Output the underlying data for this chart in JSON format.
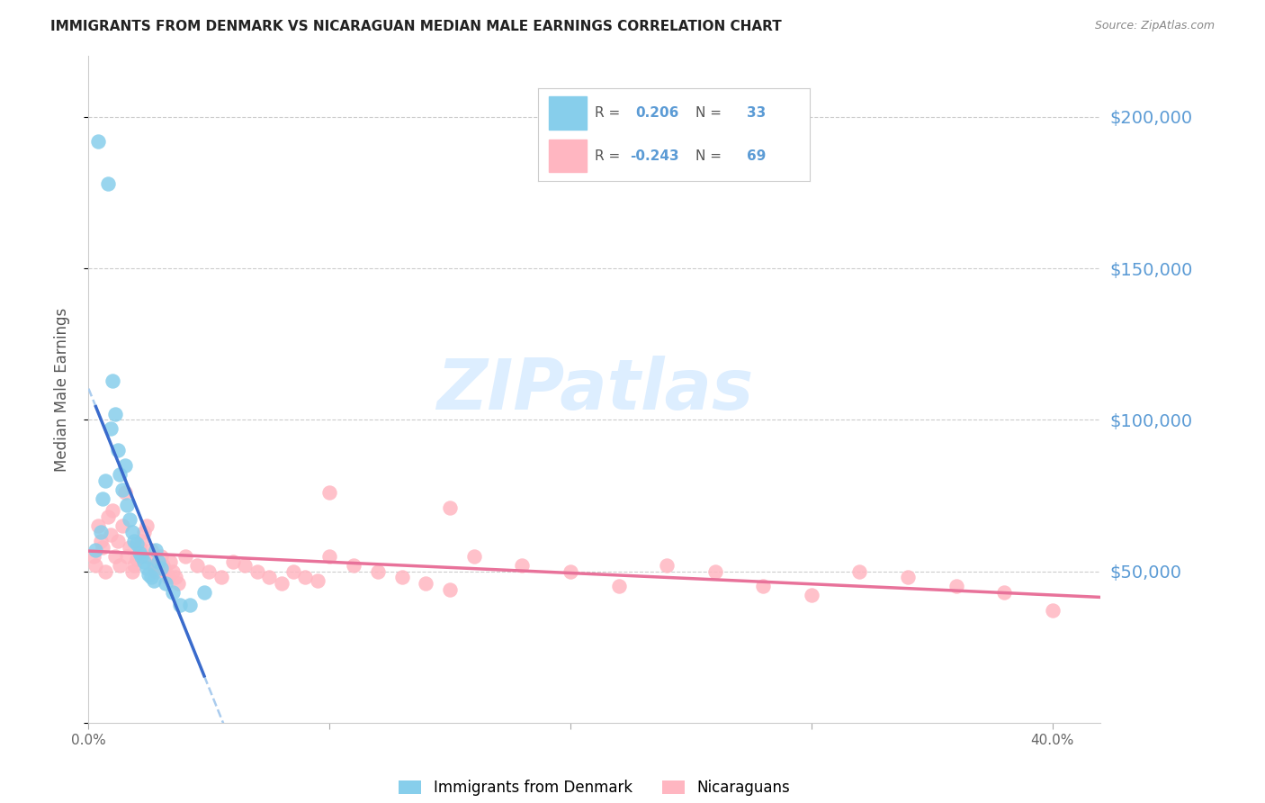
{
  "title": "IMMIGRANTS FROM DENMARK VS NICARAGUAN MEDIAN MALE EARNINGS CORRELATION CHART",
  "source": "Source: ZipAtlas.com",
  "ylabel": "Median Male Earnings",
  "yticks": [
    0,
    50000,
    100000,
    150000,
    200000
  ],
  "ytick_labels": [
    "",
    "$50,000",
    "$100,000",
    "$150,000",
    "$200,000"
  ],
  "ylim": [
    0,
    220000
  ],
  "xlim": [
    0.0,
    0.42
  ],
  "legend_r1": "0.206",
  "legend_n1": "33",
  "legend_r2": "-0.243",
  "legend_n2": "69",
  "denmark_color": "#87CEEB",
  "nicaragua_color": "#FFB6C1",
  "denmark_line_color": "#3a6bcc",
  "nicaragua_line_color": "#e8729a",
  "dashed_line_color": "#aaccee",
  "watermark_color": "#ddeeff",
  "background_color": "#FFFFFF",
  "grid_color": "#cccccc",
  "title_color": "#222222",
  "source_color": "#888888",
  "axis_label_color": "#555555",
  "right_axis_color": "#5B9BD5",
  "legend_text_color": "#555555",
  "legend_value_color": "#5B9BD5",
  "denmark_x": [
    0.003,
    0.004,
    0.005,
    0.006,
    0.007,
    0.008,
    0.009,
    0.01,
    0.011,
    0.012,
    0.013,
    0.014,
    0.015,
    0.016,
    0.017,
    0.018,
    0.019,
    0.02,
    0.021,
    0.022,
    0.023,
    0.024,
    0.025,
    0.026,
    0.027,
    0.028,
    0.029,
    0.03,
    0.032,
    0.035,
    0.038,
    0.042,
    0.048
  ],
  "denmark_y": [
    57000,
    192000,
    63000,
    74000,
    80000,
    178000,
    97000,
    113000,
    102000,
    90000,
    82000,
    77000,
    85000,
    72000,
    67000,
    63000,
    60000,
    59000,
    56000,
    55000,
    53000,
    51000,
    49000,
    48000,
    47000,
    57000,
    53000,
    51000,
    46000,
    43000,
    39000,
    39000,
    43000
  ],
  "nicaragua_x": [
    0.002,
    0.003,
    0.004,
    0.005,
    0.006,
    0.007,
    0.008,
    0.009,
    0.01,
    0.011,
    0.012,
    0.013,
    0.014,
    0.015,
    0.016,
    0.017,
    0.018,
    0.019,
    0.02,
    0.021,
    0.022,
    0.023,
    0.024,
    0.025,
    0.026,
    0.027,
    0.028,
    0.029,
    0.03,
    0.031,
    0.032,
    0.033,
    0.034,
    0.035,
    0.036,
    0.037,
    0.04,
    0.045,
    0.05,
    0.055,
    0.06,
    0.065,
    0.07,
    0.075,
    0.08,
    0.085,
    0.09,
    0.095,
    0.1,
    0.11,
    0.12,
    0.13,
    0.14,
    0.15,
    0.16,
    0.18,
    0.2,
    0.22,
    0.24,
    0.26,
    0.28,
    0.3,
    0.32,
    0.34,
    0.36,
    0.38,
    0.4,
    0.1,
    0.15
  ],
  "nicaragua_y": [
    55000,
    52000,
    65000,
    60000,
    58000,
    50000,
    68000,
    62000,
    70000,
    55000,
    60000,
    52000,
    65000,
    76000,
    55000,
    58000,
    50000,
    52000,
    54000,
    58000,
    60000,
    63000,
    65000,
    55000,
    57000,
    52000,
    50000,
    53000,
    55000,
    52000,
    50000,
    48000,
    53000,
    50000,
    48000,
    46000,
    55000,
    52000,
    50000,
    48000,
    53000,
    52000,
    50000,
    48000,
    46000,
    50000,
    48000,
    47000,
    55000,
    52000,
    50000,
    48000,
    46000,
    44000,
    55000,
    52000,
    50000,
    45000,
    52000,
    50000,
    45000,
    42000,
    50000,
    48000,
    45000,
    43000,
    37000,
    76000,
    71000
  ]
}
